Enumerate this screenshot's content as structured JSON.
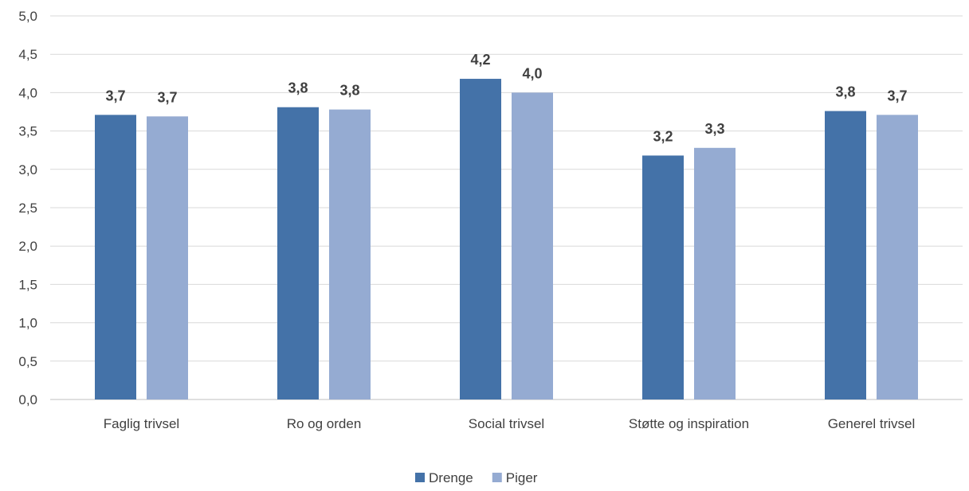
{
  "chart_data": {
    "type": "bar",
    "title": "",
    "xlabel": "",
    "ylabel": "",
    "ylim": [
      0,
      5
    ],
    "yticks": [
      "0,0",
      "0,5",
      "1,0",
      "1,5",
      "2,0",
      "2,5",
      "3,0",
      "3,5",
      "4,0",
      "4,5",
      "5,0"
    ],
    "categories": [
      "Faglig trivsel",
      "Ro og orden",
      "Social trivsel",
      "Støtte og inspiration",
      "Generel trivsel"
    ],
    "series": [
      {
        "name": "Drenge",
        "color": "#4472a8",
        "values": [
          3.71,
          3.81,
          4.18,
          3.18,
          3.76
        ],
        "labels": [
          "3,7",
          "3,8",
          "4,2",
          "3,2",
          "3,8"
        ]
      },
      {
        "name": "Piger",
        "color": "#95abd2",
        "values": [
          3.69,
          3.78,
          4.0,
          3.28,
          3.71
        ],
        "labels": [
          "3,7",
          "3,8",
          "4,0",
          "3,3",
          "3,7"
        ]
      }
    ],
    "grid": true,
    "legend": "bottom-center"
  }
}
